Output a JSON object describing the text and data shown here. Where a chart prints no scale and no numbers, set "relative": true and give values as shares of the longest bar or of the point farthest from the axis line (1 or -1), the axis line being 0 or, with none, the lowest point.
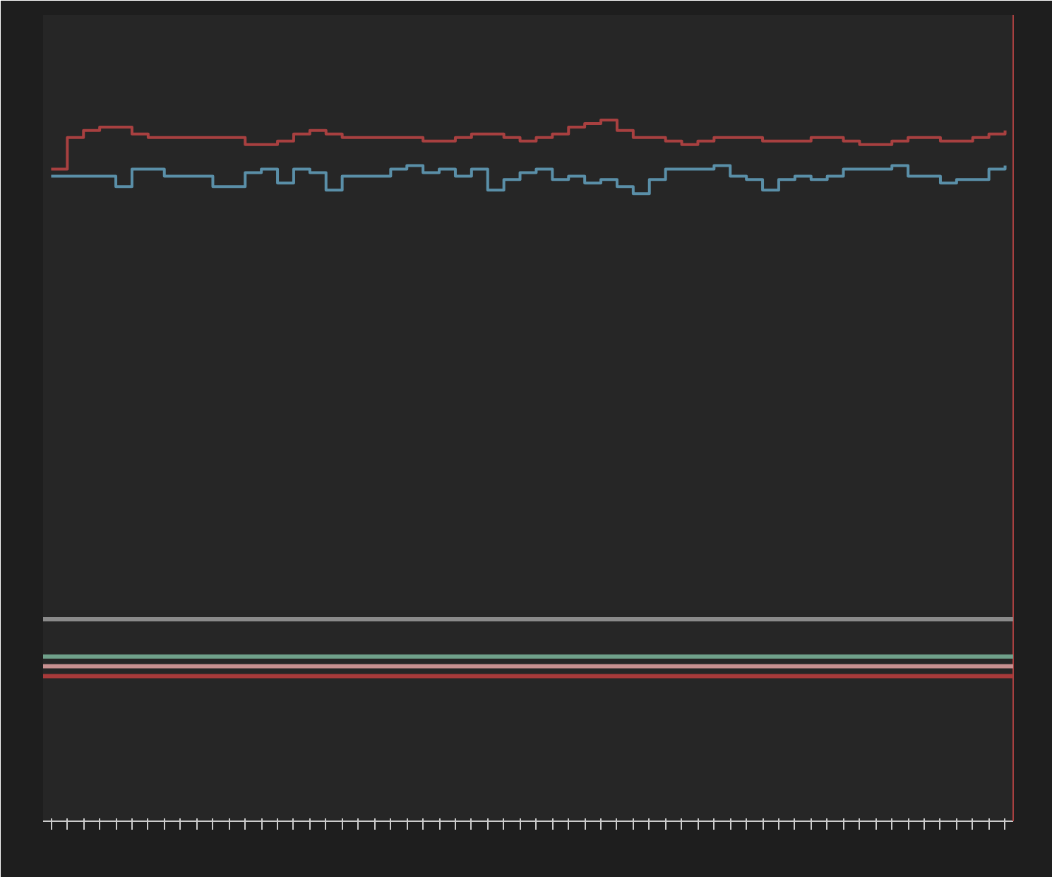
{
  "chart_data": {
    "type": "step",
    "relative": true,
    "grid": false,
    "categories": [
      null,
      null,
      null,
      null,
      null,
      null,
      null,
      null,
      null,
      null,
      null,
      null,
      null,
      null,
      null,
      null,
      null,
      null,
      null,
      null,
      null,
      null,
      null,
      null,
      null,
      null,
      null,
      null,
      null,
      null,
      null,
      null,
      null,
      null,
      null,
      null,
      null,
      null,
      null,
      null,
      null,
      null,
      null,
      null,
      null,
      null,
      null,
      null,
      null,
      null,
      null,
      null,
      null,
      null,
      null,
      null,
      null,
      null,
      null,
      null
    ],
    "series": [
      {
        "color": "#a84040",
        "values": [
          0.93,
          0.975,
          0.985,
          0.99,
          0.99,
          0.98,
          0.975,
          0.975,
          0.975,
          0.975,
          0.975,
          0.975,
          0.965,
          0.965,
          0.97,
          0.98,
          0.985,
          0.98,
          0.975,
          0.975,
          0.975,
          0.975,
          0.975,
          0.97,
          0.97,
          0.975,
          0.98,
          0.98,
          0.975,
          0.97,
          0.975,
          0.98,
          0.99,
          0.995,
          1.0,
          0.985,
          0.975,
          0.975,
          0.97,
          0.965,
          0.97,
          0.975,
          0.975,
          0.975,
          0.97,
          0.97,
          0.97,
          0.975,
          0.975,
          0.97,
          0.965,
          0.965,
          0.97,
          0.975,
          0.975,
          0.97,
          0.97,
          0.975,
          0.98,
          0.985
        ]
      },
      {
        "color": "#5a8fa8",
        "values": [
          0.92,
          0.92,
          0.92,
          0.92,
          0.905,
          0.93,
          0.93,
          0.92,
          0.92,
          0.92,
          0.905,
          0.905,
          0.925,
          0.93,
          0.91,
          0.93,
          0.925,
          0.9,
          0.92,
          0.92,
          0.92,
          0.93,
          0.935,
          0.925,
          0.93,
          0.92,
          0.93,
          0.9,
          0.915,
          0.925,
          0.93,
          0.915,
          0.92,
          0.91,
          0.915,
          0.905,
          0.895,
          0.915,
          0.93,
          0.93,
          0.93,
          0.935,
          0.92,
          0.915,
          0.9,
          0.915,
          0.92,
          0.915,
          0.92,
          0.93,
          0.93,
          0.93,
          0.935,
          0.92,
          0.92,
          0.91,
          0.915,
          0.915,
          0.93,
          0.935
        ]
      }
    ],
    "ref_lines": [
      {
        "axis": "y",
        "value": 0.288,
        "color": "#8a8a8a"
      },
      {
        "axis": "y",
        "value": 0.235,
        "color": "#6fa08a"
      },
      {
        "axis": "y",
        "value": 0.221,
        "color": "#c89090"
      },
      {
        "axis": "y",
        "value": 0.207,
        "color": "#a83a3a"
      }
    ]
  }
}
